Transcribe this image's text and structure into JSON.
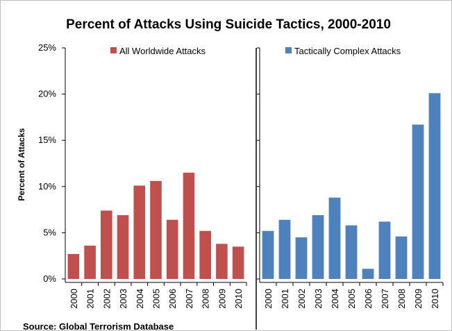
{
  "chart_data": {
    "type": "bar",
    "title": "Percent of Attacks Using Suicide Tactics, 2000-2010",
    "ylabel": "Percent of Attacks",
    "ylim": [
      0,
      25
    ],
    "yticks": [
      "0%",
      "5%",
      "10%",
      "15%",
      "20%",
      "25%"
    ],
    "ytick_values": [
      0,
      5,
      10,
      15,
      20,
      25
    ],
    "categories": [
      "2000",
      "2001",
      "2002",
      "2003",
      "2004",
      "2005",
      "2006",
      "2007",
      "2008",
      "2009",
      "2010"
    ],
    "series": [
      {
        "name": "All Worldwide Attacks",
        "color": "#c0504d",
        "values": [
          2.7,
          3.6,
          7.4,
          6.9,
          10.1,
          10.6,
          6.4,
          11.5,
          5.2,
          3.8,
          3.5
        ]
      },
      {
        "name": "Tactically Complex Attacks",
        "color": "#4f81bd",
        "values": [
          5.2,
          6.4,
          4.5,
          6.9,
          8.8,
          5.8,
          1.1,
          6.2,
          4.6,
          16.7,
          20.1
        ]
      }
    ],
    "grid": false,
    "legend": "top"
  },
  "source": "Source: Global Terrorism Database"
}
